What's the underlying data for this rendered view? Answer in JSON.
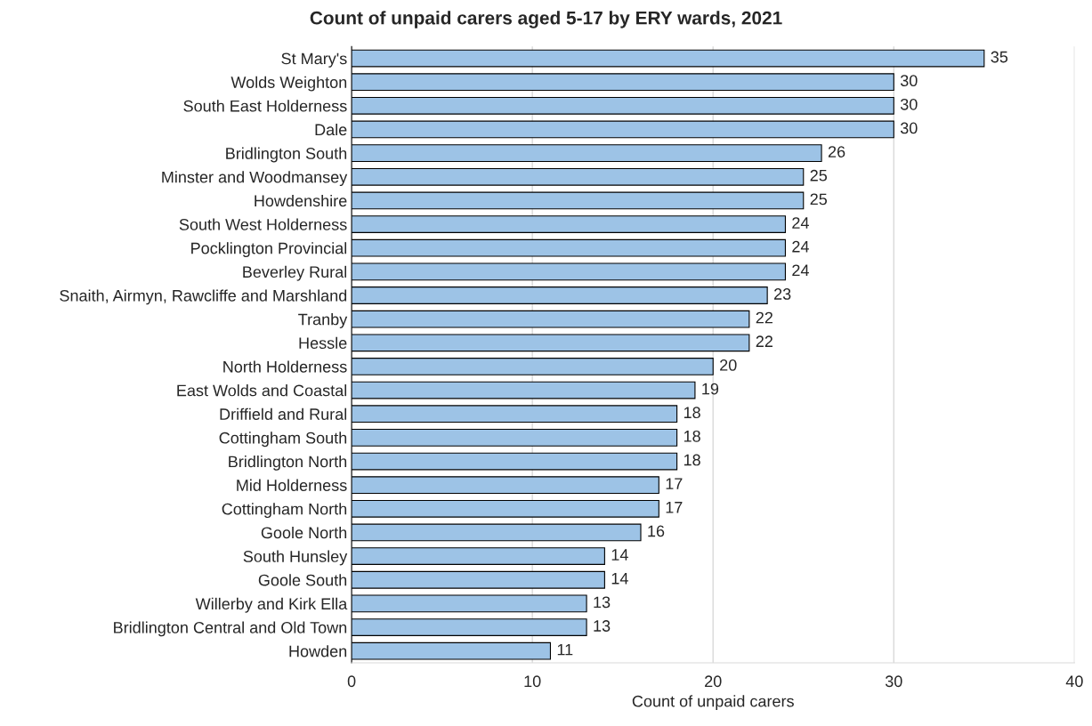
{
  "chart_data": {
    "type": "bar",
    "orientation": "horizontal",
    "title": "Count of unpaid carers aged 5-17 by ERY wards, 2021",
    "xlabel": "Count of unpaid carers",
    "categories": [
      "St Mary's",
      "Wolds Weighton",
      "South East Holderness",
      "Dale",
      "Bridlington South",
      "Minster and Woodmansey",
      "Howdenshire",
      "South West Holderness",
      "Pocklington Provincial",
      "Beverley Rural",
      "Snaith, Airmyn, Rawcliffe and Marshland",
      "Tranby",
      "Hessle",
      "North Holderness",
      "East Wolds and Coastal",
      "Driffield and Rural",
      "Cottingham South",
      "Bridlington North",
      "Mid Holderness",
      "Cottingham North",
      "Goole North",
      "South Hunsley",
      "Goole South",
      "Willerby and Kirk Ella",
      "Bridlington Central and Old Town",
      "Howden"
    ],
    "values": [
      35,
      30,
      30,
      30,
      26,
      25,
      25,
      24,
      24,
      24,
      23,
      22,
      22,
      20,
      19,
      18,
      18,
      18,
      17,
      17,
      16,
      14,
      14,
      13,
      13,
      11
    ],
    "color": "#9dc3e6",
    "xlim": [
      0,
      40
    ],
    "xticks": [
      0,
      10,
      20,
      30,
      40
    ],
    "grid": "x",
    "data_labels": true
  }
}
